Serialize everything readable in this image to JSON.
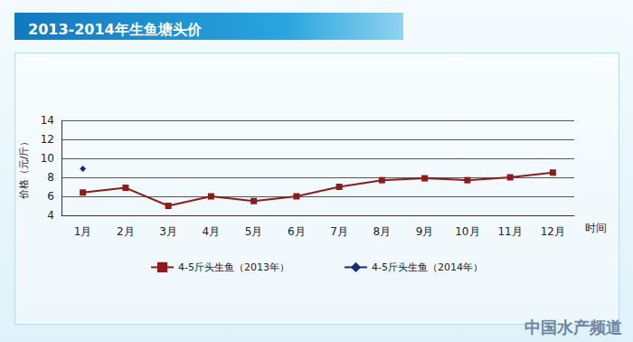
{
  "chart_data": {
    "type": "line",
    "title": "2013-2014年生鱼塘头价",
    "y_label": "价格（元/斤）",
    "x_label": "时间",
    "categories": [
      "1月",
      "2月",
      "3月",
      "4月",
      "5月",
      "6月",
      "7月",
      "8月",
      "9月",
      "10月",
      "11月",
      "12月"
    ],
    "series": [
      {
        "name": "4-5斤头生鱼（2013年）",
        "color": "#8b1c1c",
        "marker": "square",
        "values": [
          6.4,
          6.9,
          5.0,
          6.0,
          5.5,
          6.0,
          7.0,
          7.7,
          7.9,
          7.7,
          8.0,
          8.5
        ]
      },
      {
        "name": "4-5斤头生鱼（2014年）",
        "color": "#1c2a78",
        "marker": "diamond",
        "values": [
          8.9,
          null,
          null,
          null,
          null,
          null,
          null,
          null,
          null,
          null,
          null,
          null
        ]
      }
    ],
    "ylim": [
      4,
      14
    ],
    "yticks": [
      4,
      6,
      8,
      10,
      12,
      14
    ],
    "grid": true,
    "legend": "bottom",
    "annotations": [
      "中国水产频道"
    ]
  }
}
